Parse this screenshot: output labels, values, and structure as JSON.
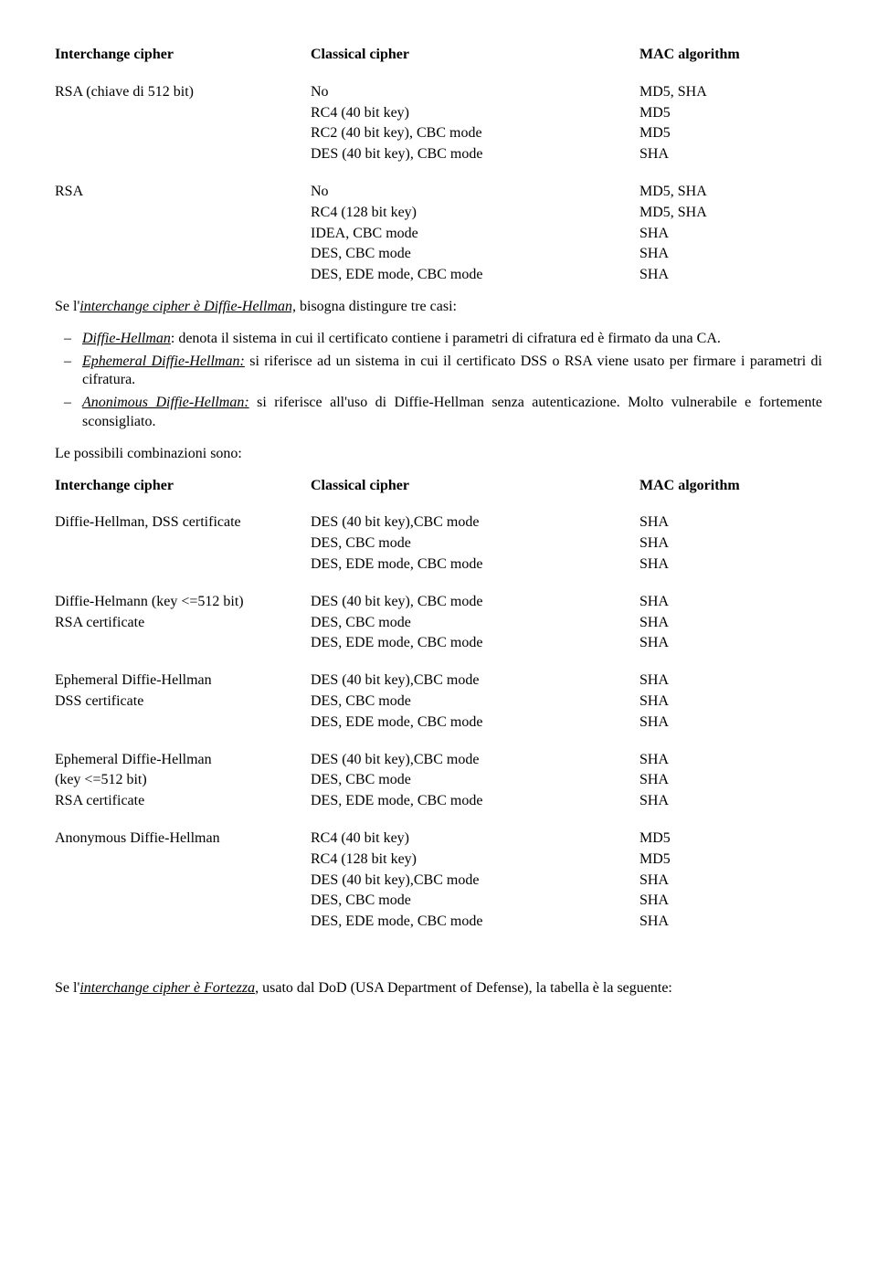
{
  "header1": {
    "c1": "Interchange cipher",
    "c2": "Classical cipher",
    "c3": "MAC algorithm"
  },
  "t1": {
    "g1": {
      "left": "RSA (chiave di 512 bit)",
      "rows": [
        {
          "c2": "No",
          "c3": "MD5, SHA"
        },
        {
          "c2": "RC4 (40 bit key)",
          "c3": "MD5"
        },
        {
          "c2": "RC2 (40 bit key), CBC mode",
          "c3": "MD5"
        },
        {
          "c2": "DES (40 bit key), CBC mode",
          "c3": "SHA"
        }
      ]
    },
    "g2": {
      "left": "RSA",
      "rows": [
        {
          "c2": "No",
          "c3": "MD5, SHA"
        },
        {
          "c2": "RC4 (128 bit key)",
          "c3": "MD5, SHA"
        },
        {
          "c2": "IDEA, CBC mode",
          "c3": "SHA"
        },
        {
          "c2": "DES, CBC mode",
          "c3": "SHA"
        },
        {
          "c2": "DES, EDE mode, CBC mode",
          "c3": "SHA"
        }
      ]
    }
  },
  "p1a": "Se l'",
  "p1b": "interchange cipher è Diffie-Hellman,",
  "p1c": " bisogna distingure tre casi:",
  "bullets": [
    {
      "lead": "Diffie-Hellman",
      "rest": ": denota il sistema in cui il certificato contiene i parametri di cifratura ed è firmato da una CA."
    },
    {
      "lead": "Ephemeral Diffie-Hellman:",
      "rest": " si riferisce ad un sistema in cui il certificato DSS o RSA viene usato per firmare i parametri di cifratura."
    },
    {
      "lead": "Anonimous Diffie-Hellman:",
      "rest": " si riferisce all'uso di Diffie-Hellman senza autenticazione. Molto vulnerabile e fortemente sconsigliato."
    }
  ],
  "p2": "Le possibili combinazioni sono:",
  "header2": {
    "c1": "Interchange cipher",
    "c2": "Classical cipher",
    "c3": "MAC algorithm"
  },
  "t2": {
    "g1": {
      "left": [
        "Diffie-Hellman, DSS certificate"
      ],
      "rows": [
        {
          "c2": "DES (40 bit key),CBC mode",
          "c3": "SHA"
        },
        {
          "c2": "DES, CBC mode",
          "c3": "SHA"
        },
        {
          "c2": "DES, EDE mode, CBC mode",
          "c3": "SHA"
        }
      ]
    },
    "g2": {
      "left": [
        "Diffie-Helmann (key <=512 bit)",
        "RSA certificate"
      ],
      "rows": [
        {
          "c2": "DES (40 bit key), CBC mode",
          "c3": "SHA"
        },
        {
          "c2": "DES, CBC mode",
          "c3": "SHA"
        },
        {
          "c2": "DES, EDE mode, CBC mode",
          "c3": "SHA"
        }
      ]
    },
    "g3": {
      "left": [
        "Ephemeral Diffie-Hellman",
        "DSS certificate"
      ],
      "rows": [
        {
          "c2": "DES (40 bit key),CBC mode",
          "c3": "SHA"
        },
        {
          "c2": "DES, CBC mode",
          "c3": "SHA"
        },
        {
          "c2": "DES, EDE mode, CBC mode",
          "c3": "SHA"
        }
      ]
    },
    "g4": {
      "left": [
        "Ephemeral Diffie-Hellman",
        "(key <=512 bit)",
        "RSA certificate"
      ],
      "rows": [
        {
          "c2": "DES (40 bit key),CBC mode",
          "c3": "SHA"
        },
        {
          "c2": "DES, CBC mode",
          "c3": "SHA"
        },
        {
          "c2": "DES, EDE mode, CBC mode",
          "c3": "SHA"
        }
      ]
    },
    "g5": {
      "left": [
        "Anonymous Diffie-Hellman"
      ],
      "rows": [
        {
          "c2": "RC4 (40 bit key)",
          "c3": "MD5"
        },
        {
          "c2": "RC4 (128 bit key)",
          "c3": "MD5"
        },
        {
          "c2": "DES (40 bit key),CBC mode",
          "c3": "SHA"
        },
        {
          "c2": "DES, CBC mode",
          "c3": "SHA"
        },
        {
          "c2": "DES, EDE mode, CBC mode",
          "c3": "SHA"
        }
      ]
    }
  },
  "p3a": "Se l'",
  "p3b": "interchange cipher è Fortezza",
  "p3c": ", usato dal DoD (USA Department of Defense), la tabella è la seguente:"
}
